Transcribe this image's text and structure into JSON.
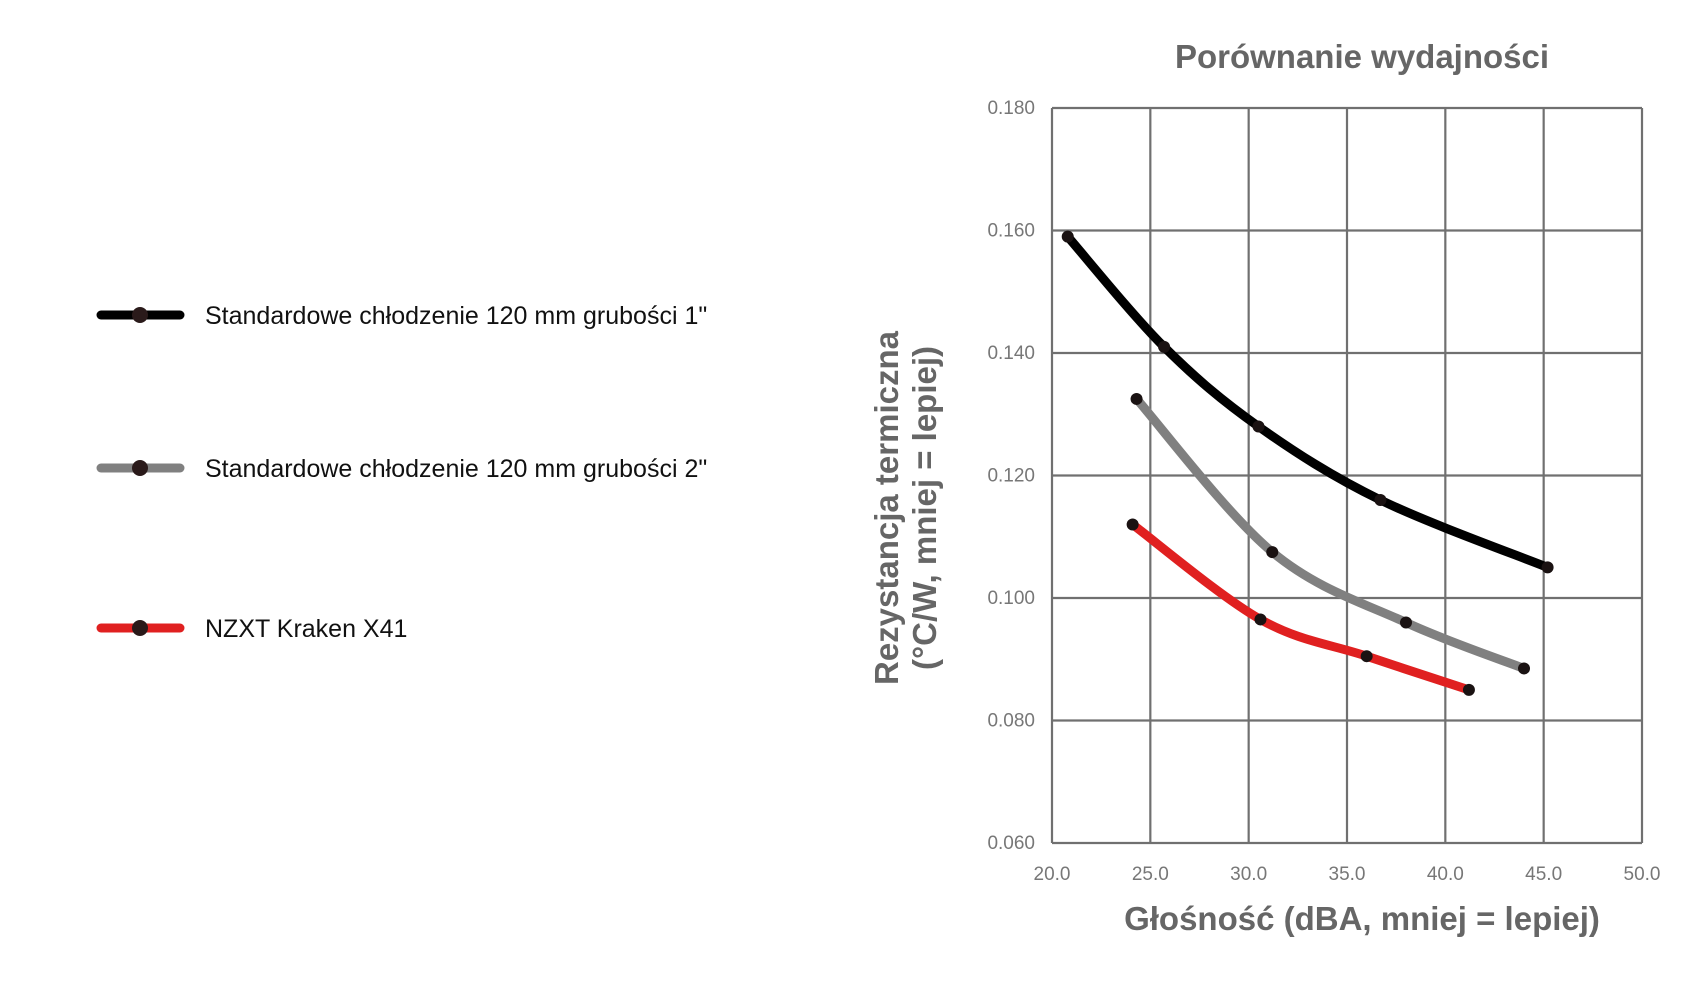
{
  "chart_data": {
    "type": "line",
    "title": "Porównanie wydajności",
    "xlabel": "Głośność (dBA, mniej = lepiej)",
    "ylabel_line1": "Rezystancja termiczna",
    "ylabel_line2": "(°C/W, mniej = lepiej)",
    "xlim": [
      20,
      50
    ],
    "ylim": [
      0.06,
      0.18
    ],
    "x_ticks": [
      "20.0",
      "25.0",
      "30.0",
      "35.0",
      "40.0",
      "45.0",
      "50.0"
    ],
    "y_ticks": [
      "0.060",
      "0.080",
      "0.100",
      "0.120",
      "0.140",
      "0.160",
      "0.180"
    ],
    "grid": true,
    "legend_position": "left",
    "series": [
      {
        "name": "Standardowe chłodzenie 120 mm grubości 1\"",
        "color": "#000000",
        "points": [
          [
            20.8,
            0.159
          ],
          [
            25.7,
            0.141
          ],
          [
            30.5,
            0.128
          ],
          [
            36.7,
            0.116
          ],
          [
            45.2,
            0.105
          ]
        ]
      },
      {
        "name": "Standardowe chłodzenie 120 mm grubości 2\"",
        "color": "#808080",
        "points": [
          [
            24.3,
            0.1325
          ],
          [
            31.2,
            0.1075
          ],
          [
            38.0,
            0.096
          ],
          [
            44.0,
            0.0885
          ]
        ]
      },
      {
        "name": "NZXT Kraken X41",
        "color": "#e02020",
        "points": [
          [
            24.1,
            0.112
          ],
          [
            30.6,
            0.0965
          ],
          [
            36.0,
            0.0905
          ],
          [
            41.2,
            0.085
          ]
        ]
      }
    ]
  }
}
